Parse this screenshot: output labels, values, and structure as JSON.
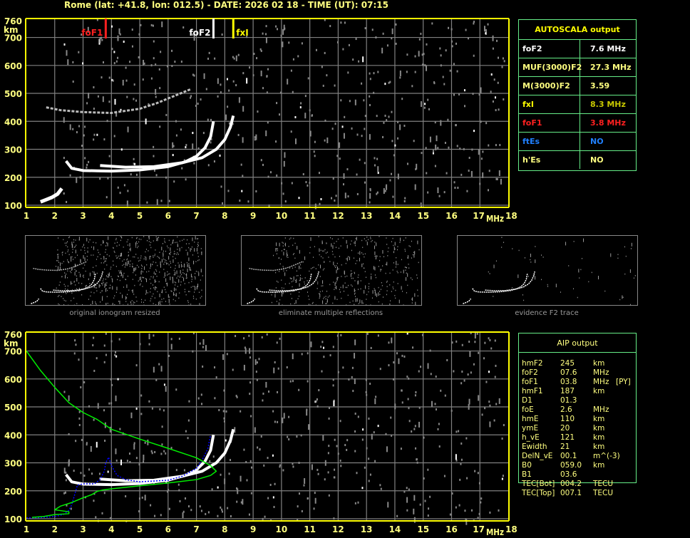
{
  "header": {
    "title": "Rome (lat: +41.8, lon: 012.5) - DATE: 2026 02 18 - TIME (UT): 07:15"
  },
  "colors": {
    "axis": "#ffff80",
    "frame": "#ffff00",
    "grid": "#808080",
    "table_border": "#66ee88",
    "foF1": "#ff2020",
    "fxI": "#ffff00",
    "ftEs": "#2080ff",
    "blue_trace": "#0000ff",
    "green_profile": "#00ee00"
  },
  "markers": {
    "foF1": "foF1",
    "foF2": "foF2",
    "fxI": "fxI"
  },
  "autoscala": {
    "title": "AUTOSCALA output",
    "rows": [
      {
        "key": "foF2",
        "value": "7.6 MHz",
        "key_color": "#ffffff",
        "value_color": "#ffffff"
      },
      {
        "key": "MUF(3000)F2",
        "value": "27.3 MHz",
        "key_color": "#ffff80",
        "value_color": "#ffff80"
      },
      {
        "key": "M(3000)F2",
        "value": "3.59",
        "key_color": "#ffff80",
        "value_color": "#ffff80"
      },
      {
        "key": "fxI",
        "value": "8.3 MHz",
        "key_color": "#ffff00",
        "value_color": "#c8c800"
      },
      {
        "key": "foF1",
        "value": "3.8 MHz",
        "key_color": "#ff2020",
        "value_color": "#ff2020"
      },
      {
        "key": "ftEs",
        "value": "NO",
        "key_color": "#2080ff",
        "value_color": "#2080ff"
      },
      {
        "key": "h'Es",
        "value": "NO",
        "key_color": "#ffff80",
        "value_color": "#ffff80"
      }
    ]
  },
  "aip": {
    "title": "AIP output",
    "rows": [
      {
        "name": "hmF2",
        "value": "245",
        "unit": "km",
        "flag": ""
      },
      {
        "name": "foF2",
        "value": "07.6",
        "unit": "MHz",
        "flag": ""
      },
      {
        "name": "foF1",
        "value": "03.8",
        "unit": "MHz",
        "flag": "[PY]"
      },
      {
        "name": "hmF1",
        "value": "187",
        "unit": "km",
        "flag": ""
      },
      {
        "name": "D1",
        "value": "01.3",
        "unit": "",
        "flag": ""
      },
      {
        "name": "foE",
        "value": "2.6",
        "unit": "MHz",
        "flag": ""
      },
      {
        "name": "hmE",
        "value": "110",
        "unit": "km",
        "flag": ""
      },
      {
        "name": "ymE",
        "value": "20",
        "unit": "km",
        "flag": ""
      },
      {
        "name": "h_vE",
        "value": "121",
        "unit": "km",
        "flag": ""
      },
      {
        "name": "Ewidth",
        "value": "21",
        "unit": "km",
        "flag": ""
      },
      {
        "name": "DelN_vE",
        "value": "00.1",
        "unit": "m^(-3)",
        "flag": ""
      },
      {
        "name": "B0",
        "value": "059.0",
        "unit": "km",
        "flag": ""
      },
      {
        "name": "B1",
        "value": "03.6",
        "unit": "",
        "flag": ""
      },
      {
        "name": "TEC[Bot]",
        "value": "004.2",
        "unit": "TECU",
        "flag": ""
      },
      {
        "name": "TEC[Top]",
        "value": "007.1",
        "unit": "TECU",
        "flag": ""
      }
    ]
  },
  "thumbnails": [
    {
      "label": "original ionogram resized"
    },
    {
      "label": "eliminate multiple reflections"
    },
    {
      "label": "evidence F2 trace"
    }
  ],
  "chart_data": [
    {
      "type": "scatter",
      "xlabel": "MHz",
      "ylabel": "km",
      "xlim": [
        1,
        18
      ],
      "ylim": [
        100,
        760
      ],
      "xticks": [
        "1",
        "2",
        "3",
        "4",
        "5",
        "6",
        "7",
        "8",
        "9",
        "10",
        "11",
        "12",
        "13",
        "14",
        "15",
        "16",
        "17",
        "18"
      ],
      "yticks": [
        "100",
        "200",
        "300",
        "400",
        "500",
        "600",
        "700",
        "760"
      ],
      "grid": true,
      "vertical_markers": [
        {
          "name": "foF1",
          "x": 3.8,
          "color": "#ff2020"
        },
        {
          "name": "foF2",
          "x": 7.6,
          "color": "#ffffff"
        },
        {
          "name": "fxI",
          "x": 8.3,
          "color": "#ffff00"
        }
      ],
      "series": [
        {
          "trace": "E",
          "points": [
            [
              1.5,
              112
            ],
            [
              1.7,
              120
            ],
            [
              1.9,
              128
            ],
            [
              2.1,
              140
            ],
            [
              2.25,
              160
            ]
          ]
        },
        {
          "trace": "F ordinary",
          "points": [
            [
              2.4,
              258
            ],
            [
              2.6,
              232
            ],
            [
              3.0,
              224
            ],
            [
              3.5,
              223
            ],
            [
              4.0,
              222
            ],
            [
              5.0,
              226
            ],
            [
              6.0,
              238
            ],
            [
              6.6,
              255
            ],
            [
              7.0,
              275
            ],
            [
              7.3,
              305
            ],
            [
              7.5,
              345
            ],
            [
              7.6,
              400
            ]
          ]
        },
        {
          "trace": "F extraordinary",
          "points": [
            [
              3.6,
              242
            ],
            [
              4.5,
              236
            ],
            [
              5.5,
              238
            ],
            [
              6.5,
              252
            ],
            [
              7.2,
              270
            ],
            [
              7.7,
              300
            ],
            [
              8.0,
              335
            ],
            [
              8.2,
              380
            ],
            [
              8.3,
              420
            ]
          ]
        },
        {
          "trace": "F second hop",
          "points": [
            [
              1.7,
              450
            ],
            [
              2.2,
              440
            ],
            [
              3.0,
              433
            ],
            [
              4.0,
              430
            ],
            [
              5.0,
              445
            ],
            [
              5.6,
              465
            ],
            [
              6.2,
              490
            ],
            [
              6.8,
              515
            ]
          ]
        }
      ]
    },
    {
      "type": "line",
      "xlabel": "MHz",
      "ylabel": "km",
      "xlim": [
        1,
        18
      ],
      "ylim": [
        100,
        760
      ],
      "grid": true,
      "series": [
        {
          "trace": "F ordinary",
          "points": [
            [
              2.4,
              258
            ],
            [
              2.6,
              232
            ],
            [
              3.0,
              224
            ],
            [
              3.5,
              223
            ],
            [
              4.0,
              222
            ],
            [
              5.0,
              226
            ],
            [
              6.0,
              238
            ],
            [
              6.6,
              255
            ],
            [
              7.0,
              275
            ],
            [
              7.3,
              305
            ],
            [
              7.5,
              345
            ],
            [
              7.6,
              400
            ]
          ]
        },
        {
          "trace": "F extraordinary",
          "points": [
            [
              3.6,
              242
            ],
            [
              4.5,
              236
            ],
            [
              5.5,
              238
            ],
            [
              6.5,
              252
            ],
            [
              7.2,
              270
            ],
            [
              7.7,
              300
            ],
            [
              8.0,
              335
            ],
            [
              8.2,
              380
            ],
            [
              8.3,
              420
            ]
          ]
        },
        {
          "trace": "AIP fitted trace",
          "color": "#0000ff",
          "points": [
            [
              1.0,
              103
            ],
            [
              1.5,
              104
            ],
            [
              2.0,
              108
            ],
            [
              2.3,
              115
            ],
            [
              2.5,
              130
            ],
            [
              2.6,
              150
            ],
            [
              2.7,
              185
            ],
            [
              2.8,
              220
            ],
            [
              3.0,
              225
            ],
            [
              3.4,
              225
            ],
            [
              3.6,
              240
            ],
            [
              3.75,
              270
            ],
            [
              3.8,
              300
            ],
            [
              3.9,
              320
            ],
            [
              4.0,
              290
            ],
            [
              4.2,
              255
            ],
            [
              4.5,
              240
            ],
            [
              5.0,
              232
            ],
            [
              6.0,
              238
            ],
            [
              6.5,
              252
            ],
            [
              7.0,
              280
            ],
            [
              7.2,
              310
            ],
            [
              7.4,
              350
            ],
            [
              7.5,
              400
            ]
          ]
        },
        {
          "trace": "AIP electron density profile",
          "color": "#00ee00",
          "points": [
            [
              1.0,
              700
            ],
            [
              1.5,
              630
            ],
            [
              2.0,
              570
            ],
            [
              2.5,
              515
            ],
            [
              3.0,
              480
            ],
            [
              3.5,
              455
            ],
            [
              4.0,
              420
            ],
            [
              5.0,
              385
            ],
            [
              6.0,
              352
            ],
            [
              7.0,
              318
            ],
            [
              7.5,
              290
            ],
            [
              7.7,
              270
            ],
            [
              7.5,
              255
            ],
            [
              7.0,
              240
            ],
            [
              6.0,
              228
            ],
            [
              5.0,
              218
            ],
            [
              4.0,
              207
            ],
            [
              3.7,
              203
            ],
            [
              3.5,
              198
            ],
            [
              3.3,
              186
            ],
            [
              3.0,
              175
            ],
            [
              2.6,
              158
            ],
            [
              2.2,
              145
            ],
            [
              2.0,
              132
            ],
            [
              2.5,
              125
            ],
            [
              2.5,
              118
            ],
            [
              2.0,
              115
            ],
            [
              1.6,
              108
            ],
            [
              1.2,
              105
            ]
          ]
        }
      ]
    }
  ]
}
